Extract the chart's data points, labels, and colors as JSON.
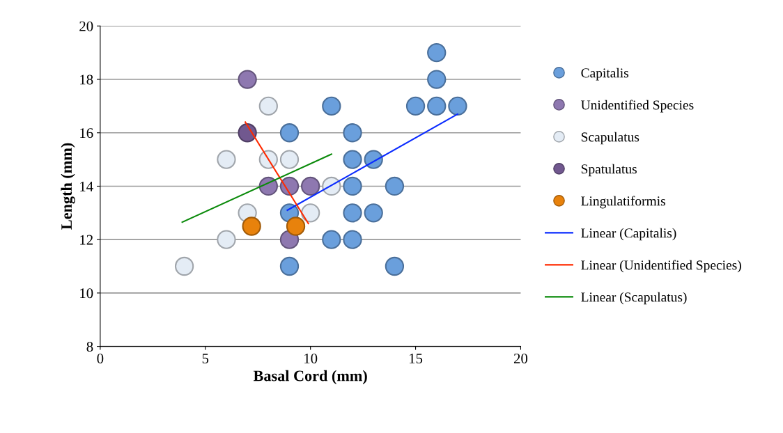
{
  "chart_data": {
    "type": "scatter",
    "xlabel": "Basal Cord (mm)",
    "ylabel": "Length (mm)",
    "xlim": [
      0,
      20
    ],
    "ylim": [
      8,
      20
    ],
    "xticks": [
      0,
      5,
      10,
      15,
      20
    ],
    "yticks": [
      8,
      10,
      12,
      14,
      16,
      18,
      20
    ],
    "grid": "y",
    "legend": "right",
    "series": [
      {
        "name": "Capitalis",
        "color": "#6a9fdc",
        "marker": "circle",
        "x": [
          9,
          11,
          12,
          12,
          13,
          12,
          9,
          12,
          13,
          11,
          12,
          9,
          14,
          14,
          15,
          16,
          17,
          16,
          16
        ],
        "values": [
          16,
          17,
          16,
          15,
          15,
          14,
          13,
          13,
          13,
          12,
          12,
          11,
          11,
          14,
          17,
          17,
          17,
          18,
          19
        ]
      },
      {
        "name": "Unidentified Species",
        "color": "#8e78b0",
        "marker": "circle",
        "x": [
          7,
          8,
          9,
          10,
          9
        ],
        "values": [
          18,
          14,
          14,
          14,
          12
        ]
      },
      {
        "name": "Scapulatus",
        "color": "#e4ecf5",
        "marker": "circle",
        "x": [
          8,
          6,
          8,
          9,
          11,
          7,
          10,
          6,
          4
        ],
        "values": [
          17,
          15,
          15,
          15,
          14,
          13,
          13,
          12,
          11
        ]
      },
      {
        "name": "Spatulatus",
        "color": "#71588f",
        "marker": "circle",
        "x": [
          7
        ],
        "values": [
          16
        ]
      },
      {
        "name": "Lingulatiformis",
        "color": "#e8820c",
        "marker": "circle",
        "x": [
          7.2,
          9.3
        ],
        "values": [
          12.5,
          12.5
        ]
      },
      {
        "name": "Linear (Capitalis)",
        "type": "line",
        "color": "#0a2bff",
        "x": [
          8.9,
          17
        ],
        "values": [
          13.1,
          16.7
        ]
      },
      {
        "name": "Linear (Unidentified Species)",
        "type": "line",
        "color": "#ff2a00",
        "x": [
          6.9,
          9.9
        ],
        "values": [
          16.4,
          12.6
        ]
      },
      {
        "name": "Linear (Scapulatus)",
        "type": "line",
        "color": "#0a8a0a",
        "x": [
          3.9,
          11
        ],
        "values": [
          12.65,
          15.2
        ]
      }
    ]
  }
}
